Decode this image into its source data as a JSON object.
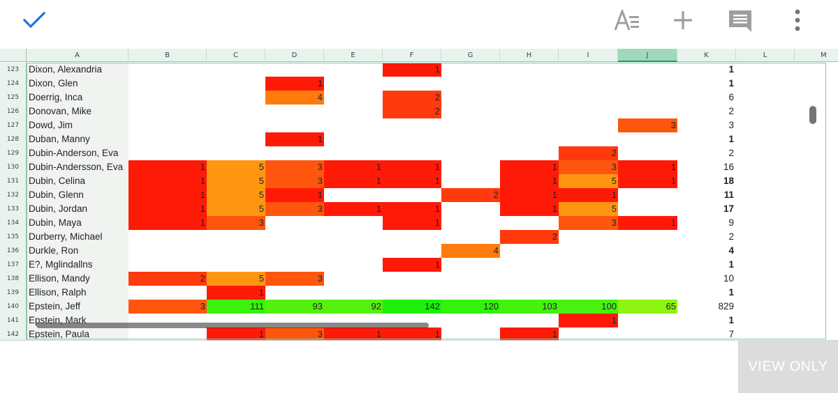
{
  "toolbar": {
    "done_icon": "check-icon",
    "format_icon": "text-format-icon",
    "add_icon": "add-icon",
    "comment_icon": "comment-icon",
    "more_icon": "more-vert-icon",
    "accent_color": "#1a73e8",
    "icon_color": "#9e9e9e"
  },
  "columns": [
    "A",
    "B",
    "C",
    "D",
    "E",
    "F",
    "G",
    "H",
    "I",
    "J",
    "K",
    "L",
    "M"
  ],
  "selected_column": "J",
  "rows": [
    {
      "num": "123",
      "name": "Dixon, Alexandria",
      "cells": [
        null,
        null,
        null,
        null,
        {
          "v": "1",
          "c": "#ff1a08"
        },
        null,
        null,
        null,
        null
      ],
      "total": "1",
      "bold": true
    },
    {
      "num": "124",
      "name": "Dixon, Glen",
      "cells": [
        null,
        null,
        {
          "v": "1",
          "c": "#ff1a08"
        },
        null,
        null,
        null,
        null,
        null,
        null
      ],
      "total": "1",
      "bold": true
    },
    {
      "num": "125",
      "name": "Doerrig, Inca",
      "cells": [
        null,
        null,
        {
          "v": "4",
          "c": "#ff7c0c"
        },
        null,
        {
          "v": "2",
          "c": "#ff3a0c"
        },
        null,
        null,
        null,
        null
      ],
      "total": "6",
      "bold": false
    },
    {
      "num": "126",
      "name": "Donovan, Mike",
      "cells": [
        null,
        null,
        null,
        null,
        {
          "v": "2",
          "c": "#ff3a0c"
        },
        null,
        null,
        null,
        null
      ],
      "total": "2",
      "bold": false
    },
    {
      "num": "127",
      "name": "Dowd, Jim",
      "cells": [
        null,
        null,
        null,
        null,
        null,
        null,
        null,
        null,
        {
          "v": "3",
          "c": "#ff560e"
        }
      ],
      "total": "3",
      "bold": false
    },
    {
      "num": "128",
      "name": "Duban, Manny",
      "cells": [
        null,
        null,
        {
          "v": "1",
          "c": "#ff1a08"
        },
        null,
        null,
        null,
        null,
        null,
        null
      ],
      "total": "1",
      "bold": true
    },
    {
      "num": "129",
      "name": "Dubin-Anderson, Eva",
      "cells": [
        null,
        null,
        null,
        null,
        null,
        null,
        null,
        {
          "v": "2",
          "c": "#ff3a0c"
        },
        null
      ],
      "total": "2",
      "bold": false
    },
    {
      "num": "130",
      "name": "Dubin-Andersson, Eva",
      "cells": [
        {
          "v": "1",
          "c": "#ff1a08"
        },
        {
          "v": "5",
          "c": "#ff9612"
        },
        {
          "v": "3",
          "c": "#ff560e"
        },
        {
          "v": "1",
          "c": "#ff1a08"
        },
        {
          "v": "1",
          "c": "#ff1a08"
        },
        null,
        {
          "v": "1",
          "c": "#ff1a08"
        },
        {
          "v": "3",
          "c": "#ff560e"
        },
        {
          "v": "1",
          "c": "#ff1a08"
        }
      ],
      "total": "16",
      "bold": false
    },
    {
      "num": "131",
      "name": "Dubin, Celina",
      "cells": [
        {
          "v": "1",
          "c": "#ff1a08"
        },
        {
          "v": "5",
          "c": "#ff9612"
        },
        {
          "v": "3",
          "c": "#ff560e"
        },
        {
          "v": "1",
          "c": "#ff1a08"
        },
        {
          "v": "1",
          "c": "#ff1a08"
        },
        null,
        {
          "v": "1",
          "c": "#ff1a08"
        },
        {
          "v": "5",
          "c": "#ff9612"
        },
        {
          "v": "1",
          "c": "#ff1a08"
        }
      ],
      "total": "18",
      "bold": true
    },
    {
      "num": "132",
      "name": "Dubin, Glenn",
      "cells": [
        {
          "v": "1",
          "c": "#ff1a08"
        },
        {
          "v": "5",
          "c": "#ff9612"
        },
        {
          "v": "1",
          "c": "#ff1a08"
        },
        null,
        null,
        {
          "v": "2",
          "c": "#ff3a0c"
        },
        {
          "v": "1",
          "c": "#ff1a08"
        },
        {
          "v": "1",
          "c": "#ff1a08"
        },
        null
      ],
      "total": "11",
      "bold": true
    },
    {
      "num": "133",
      "name": "Dubin, Jordan",
      "cells": [
        {
          "v": "1",
          "c": "#ff1a08"
        },
        {
          "v": "5",
          "c": "#ff9612"
        },
        {
          "v": "3",
          "c": "#ff560e"
        },
        {
          "v": "1",
          "c": "#ff1a08"
        },
        {
          "v": "1",
          "c": "#ff1a08"
        },
        null,
        {
          "v": "1",
          "c": "#ff1a08"
        },
        {
          "v": "5",
          "c": "#ff9612"
        },
        null
      ],
      "total": "17",
      "bold": true
    },
    {
      "num": "134",
      "name": "Dubin, Maya",
      "cells": [
        {
          "v": "1",
          "c": "#ff1a08"
        },
        {
          "v": "3",
          "c": "#ff560e"
        },
        null,
        null,
        {
          "v": "1",
          "c": "#ff1a08"
        },
        null,
        null,
        {
          "v": "3",
          "c": "#ff560e"
        },
        {
          "v": "1",
          "c": "#ff1a08"
        }
      ],
      "total": "9",
      "bold": false
    },
    {
      "num": "135",
      "name": "Durberry, Michael",
      "cells": [
        null,
        null,
        null,
        null,
        null,
        null,
        {
          "v": "2",
          "c": "#ff3a0c"
        },
        null,
        null
      ],
      "total": "2",
      "bold": false
    },
    {
      "num": "136",
      "name": "Durkle, Ron",
      "cells": [
        null,
        null,
        null,
        null,
        null,
        {
          "v": "4",
          "c": "#ff7c0c"
        },
        null,
        null,
        null
      ],
      "total": "4",
      "bold": true
    },
    {
      "num": "137",
      "name": "E?, Mglindallns",
      "cells": [
        null,
        null,
        null,
        null,
        {
          "v": "1",
          "c": "#ff1a08"
        },
        null,
        null,
        null,
        null
      ],
      "total": "1",
      "bold": true
    },
    {
      "num": "138",
      "name": "Ellison, Mandy",
      "cells": [
        {
          "v": "2",
          "c": "#ff3a0c"
        },
        {
          "v": "5",
          "c": "#ff9612"
        },
        {
          "v": "3",
          "c": "#ff560e"
        },
        null,
        null,
        null,
        null,
        null,
        null
      ],
      "total": "10",
      "bold": false
    },
    {
      "num": "139",
      "name": "Ellison, Ralph",
      "cells": [
        null,
        {
          "v": "1",
          "c": "#ff1a08"
        },
        null,
        null,
        null,
        null,
        null,
        null,
        null
      ],
      "total": "1",
      "bold": true
    },
    {
      "num": "140",
      "name": "Epstein, Jeff",
      "cells": [
        {
          "v": "3",
          "c": "#ff560e"
        },
        {
          "v": "111",
          "c": "#3cf20c"
        },
        {
          "v": "93",
          "c": "#52f20e"
        },
        {
          "v": "92",
          "c": "#54f20e"
        },
        {
          "v": "142",
          "c": "#1ef00a"
        },
        {
          "v": "120",
          "c": "#33f20c"
        },
        {
          "v": "103",
          "c": "#44f20e"
        },
        {
          "v": "100",
          "c": "#47f20e"
        },
        {
          "v": "65",
          "c": "#8ef412"
        }
      ],
      "total": "829",
      "bold": false
    },
    {
      "num": "141",
      "name": "Epstein, Mark",
      "cells": [
        null,
        null,
        null,
        null,
        null,
        null,
        null,
        {
          "v": "1",
          "c": "#ff1a08"
        },
        null
      ],
      "total": "1",
      "bold": true
    },
    {
      "num": "142",
      "name": "Epstein, Paula",
      "cells": [
        null,
        {
          "v": "1",
          "c": "#ff1a08"
        },
        {
          "v": "3",
          "c": "#ff560e"
        },
        {
          "v": "1",
          "c": "#ff1a08"
        },
        {
          "v": "1",
          "c": "#ff1a08"
        },
        null,
        {
          "v": "1",
          "c": "#ff1a08"
        },
        null,
        null
      ],
      "total": "7",
      "bold": false
    }
  ],
  "bottom": {
    "mode_label": "VIEW ONLY"
  }
}
